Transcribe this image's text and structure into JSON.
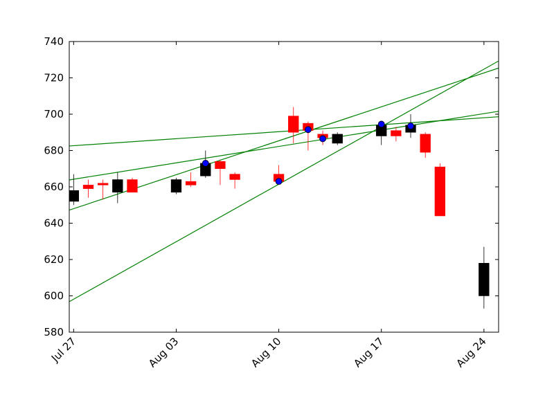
{
  "chart_data": {
    "type": "candlestick",
    "title": "",
    "xlabel": "",
    "ylabel": "",
    "ylim": [
      580,
      740
    ],
    "yticks": [
      580,
      600,
      620,
      640,
      660,
      680,
      700,
      720,
      740
    ],
    "xlim": [
      "2015-07-26.7",
      "2015-08-25.0"
    ],
    "xticks": [
      {
        "date": "2015-07-27",
        "label": "Jul 27"
      },
      {
        "date": "2015-08-03",
        "label": "Aug 03"
      },
      {
        "date": "2015-08-10",
        "label": "Aug 10"
      },
      {
        "date": "2015-08-17",
        "label": "Aug 17"
      },
      {
        "date": "2015-08-24",
        "label": "Aug 24"
      }
    ],
    "colors": {
      "up": "#000000",
      "down": "#ff0000",
      "trend": "#008000",
      "point": "#0000ff"
    },
    "candles": [
      {
        "date": "2015-07-27",
        "open": 652,
        "high": 667,
        "low": 650,
        "close": 658
      },
      {
        "date": "2015-07-28",
        "open": 661,
        "high": 664,
        "low": 654,
        "close": 659
      },
      {
        "date": "2015-07-29",
        "open": 662,
        "high": 664,
        "low": 653,
        "close": 661
      },
      {
        "date": "2015-07-30",
        "open": 657,
        "high": 668,
        "low": 651,
        "close": 664
      },
      {
        "date": "2015-07-31",
        "open": 664,
        "high": 665,
        "low": 657,
        "close": 657
      },
      {
        "date": "2015-08-03",
        "open": 657,
        "high": 665,
        "low": 656,
        "close": 664
      },
      {
        "date": "2015-08-04",
        "open": 663,
        "high": 668,
        "low": 660,
        "close": 661
      },
      {
        "date": "2015-08-05",
        "open": 666,
        "high": 680,
        "low": 665,
        "close": 673
      },
      {
        "date": "2015-08-06",
        "open": 674,
        "high": 675,
        "low": 661,
        "close": 670
      },
      {
        "date": "2015-08-07",
        "open": 667,
        "high": 668,
        "low": 659,
        "close": 664
      },
      {
        "date": "2015-08-10",
        "open": 667,
        "high": 672,
        "low": 662,
        "close": 663
      },
      {
        "date": "2015-08-11",
        "open": 699,
        "high": 704,
        "low": 684,
        "close": 690
      },
      {
        "date": "2015-08-12",
        "open": 695,
        "high": 696,
        "low": 680,
        "close": 691
      },
      {
        "date": "2015-08-13",
        "open": 689,
        "high": 691,
        "low": 683,
        "close": 687
      },
      {
        "date": "2015-08-14",
        "open": 684,
        "high": 690,
        "low": 683,
        "close": 689
      },
      {
        "date": "2015-08-17",
        "open": 688,
        "high": 695,
        "low": 683,
        "close": 694
      },
      {
        "date": "2015-08-18",
        "open": 691,
        "high": 693,
        "low": 685,
        "close": 688
      },
      {
        "date": "2015-08-19",
        "open": 690,
        "high": 700,
        "low": 687,
        "close": 694
      },
      {
        "date": "2015-08-20",
        "open": 689,
        "high": 690,
        "low": 676,
        "close": 679
      },
      {
        "date": "2015-08-21",
        "open": 671,
        "high": 673,
        "low": 644,
        "close": 644
      },
      {
        "date": "2015-08-24",
        "open": 600,
        "high": 627,
        "low": 593,
        "close": 618
      }
    ],
    "points": [
      {
        "date": "2015-08-05",
        "value": 673
      },
      {
        "date": "2015-08-10",
        "value": 663
      },
      {
        "date": "2015-08-12",
        "value": 691.5
      },
      {
        "date": "2015-08-13",
        "value": 686.5
      },
      {
        "date": "2015-08-17",
        "value": 694.5
      },
      {
        "date": "2015-08-19",
        "value": 693.5
      }
    ],
    "trendlines": [
      {
        "start": {
          "date": "2015-07-26.7",
          "value": 682.5
        },
        "end": {
          "date": "2015-08-25.0",
          "value": 698.6
        }
      },
      {
        "start": {
          "date": "2015-07-26.7",
          "value": 663.8
        },
        "end": {
          "date": "2015-08-25.0",
          "value": 701.6
        }
      },
      {
        "start": {
          "date": "2015-07-26.7",
          "value": 647.2
        },
        "end": {
          "date": "2015-08-25.0",
          "value": 725.4
        }
      },
      {
        "start": {
          "date": "2015-07-26.7",
          "value": 596.8
        },
        "end": {
          "date": "2015-08-25.0",
          "value": 729.3
        }
      }
    ]
  }
}
